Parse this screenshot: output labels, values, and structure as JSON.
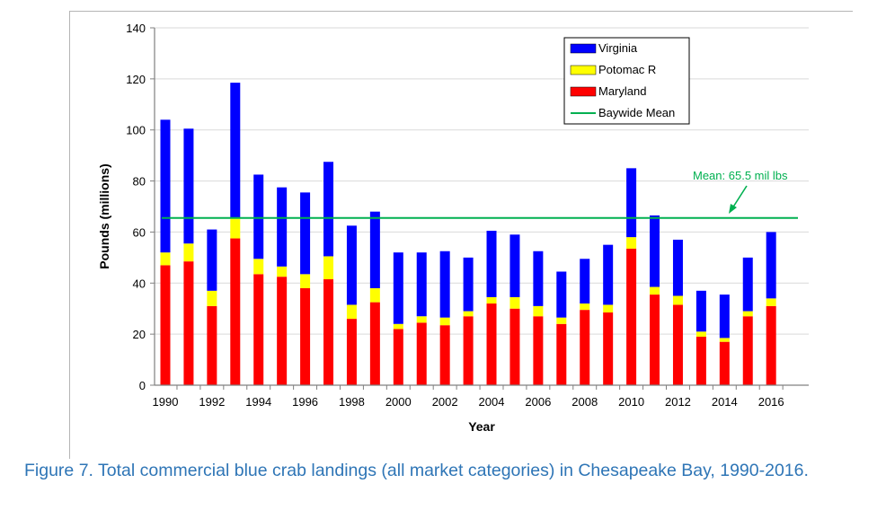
{
  "caption": "Figure 7. Total commercial blue crab landings (all market categories) in Chesapeake Bay, 1990-2016.",
  "chart_data": {
    "type": "bar",
    "stacked": true,
    "title": "",
    "xlabel": "Year",
    "ylabel": "Pounds (millions)",
    "ylim": [
      0,
      140
    ],
    "yticks": [
      0,
      20,
      40,
      60,
      80,
      100,
      120,
      140
    ],
    "xtick_labels": [
      "1990",
      "1992",
      "1994",
      "1996",
      "1998",
      "2000",
      "2002",
      "2004",
      "2006",
      "2008",
      "2010",
      "2012",
      "2014",
      "2016"
    ],
    "categories": [
      "1990",
      "1991",
      "1992",
      "1993",
      "1994",
      "1995",
      "1996",
      "1997",
      "1998",
      "1999",
      "2000",
      "2001",
      "2002",
      "2003",
      "2004",
      "2005",
      "2006",
      "2007",
      "2008",
      "2009",
      "2010",
      "2011",
      "2012",
      "2013",
      "2014",
      "2015",
      "2016"
    ],
    "grid": true,
    "legend_position": "top-right",
    "series": [
      {
        "name": "Maryland",
        "color": "#ff0000",
        "values": [
          47.0,
          48.5,
          31.0,
          57.5,
          43.5,
          42.5,
          38.0,
          41.5,
          26.0,
          32.5,
          22.0,
          24.5,
          23.5,
          27.0,
          32.0,
          30.0,
          27.0,
          24.0,
          29.5,
          28.5,
          53.5,
          35.5,
          31.5,
          19.0,
          17.0,
          27.0,
          31.0
        ]
      },
      {
        "name": "Potomac R",
        "color": "#ffff00",
        "values": [
          5.0,
          7.0,
          6.0,
          8.0,
          6.0,
          4.0,
          5.5,
          9.0,
          5.5,
          5.5,
          2.0,
          2.5,
          3.0,
          2.0,
          2.5,
          4.5,
          4.0,
          2.5,
          2.5,
          3.0,
          4.5,
          3.0,
          3.5,
          2.0,
          1.5,
          2.0,
          3.0
        ]
      },
      {
        "name": "Virginia",
        "color": "#0000ff",
        "values": [
          52.0,
          45.0,
          24.0,
          53.0,
          33.0,
          31.0,
          32.0,
          37.0,
          31.0,
          30.0,
          28.0,
          25.0,
          26.0,
          21.0,
          26.0,
          24.5,
          21.5,
          18.0,
          17.5,
          23.5,
          27.0,
          28.0,
          22.0,
          16.0,
          17.0,
          21.0,
          26.0
        ]
      }
    ],
    "mean_line": {
      "name": "Baywide Mean",
      "value": 65.5,
      "color": "#00b050"
    },
    "legend": [
      "Virginia",
      "Potomac R",
      "Maryland",
      "Baywide Mean"
    ],
    "annotation": {
      "text": "Mean: 65.5 mil lbs",
      "color": "#00b050"
    }
  }
}
